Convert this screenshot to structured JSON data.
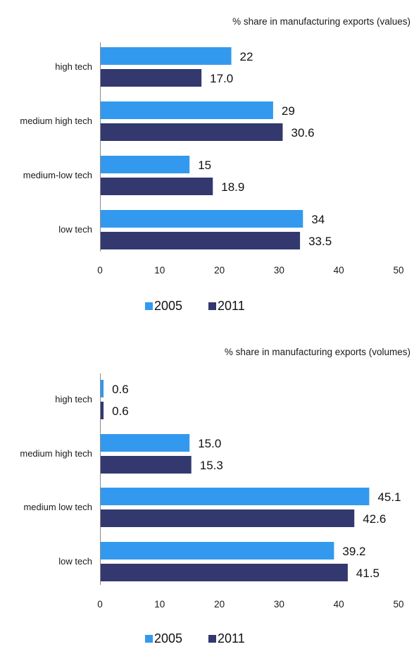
{
  "chart_data": [
    {
      "type": "bar",
      "orientation": "horizontal",
      "title": "% share in manufacturing exports (values)",
      "categories": [
        "high tech",
        "medium high tech",
        "medium-low tech",
        "low tech"
      ],
      "series": [
        {
          "name": "2005",
          "values": [
            22,
            29,
            15,
            34
          ],
          "labels": [
            "22",
            "29",
            "15",
            "34"
          ],
          "color": "#3399ee"
        },
        {
          "name": "2011",
          "values": [
            17.0,
            30.6,
            18.9,
            33.5
          ],
          "labels": [
            "17.0",
            "30.6",
            "18.9",
            "33.5"
          ],
          "color": "#33386e"
        }
      ],
      "xlim": [
        0,
        50
      ],
      "xticks": [
        "0",
        "10",
        "20",
        "30",
        "40",
        "50"
      ],
      "grid": false,
      "legend": "bottom"
    },
    {
      "type": "bar",
      "orientation": "horizontal",
      "title": "% share in manufacturing exports (volumes)",
      "categories": [
        "high tech",
        "medium high tech",
        "medium low tech",
        "low tech"
      ],
      "series": [
        {
          "name": "2005",
          "values": [
            0.6,
            15.0,
            45.1,
            39.2
          ],
          "labels": [
            "0.6",
            "15.0",
            "45.1",
            "39.2"
          ],
          "color": "#3399ee"
        },
        {
          "name": "2011",
          "values": [
            0.6,
            15.3,
            42.6,
            41.5
          ],
          "labels": [
            "0.6",
            "15.3",
            "42.6",
            "41.5"
          ],
          "color": "#33386e"
        }
      ],
      "xlim": [
        0,
        50
      ],
      "xticks": [
        "0",
        "10",
        "20",
        "30",
        "40",
        "50"
      ],
      "grid": false,
      "legend": "bottom"
    }
  ]
}
